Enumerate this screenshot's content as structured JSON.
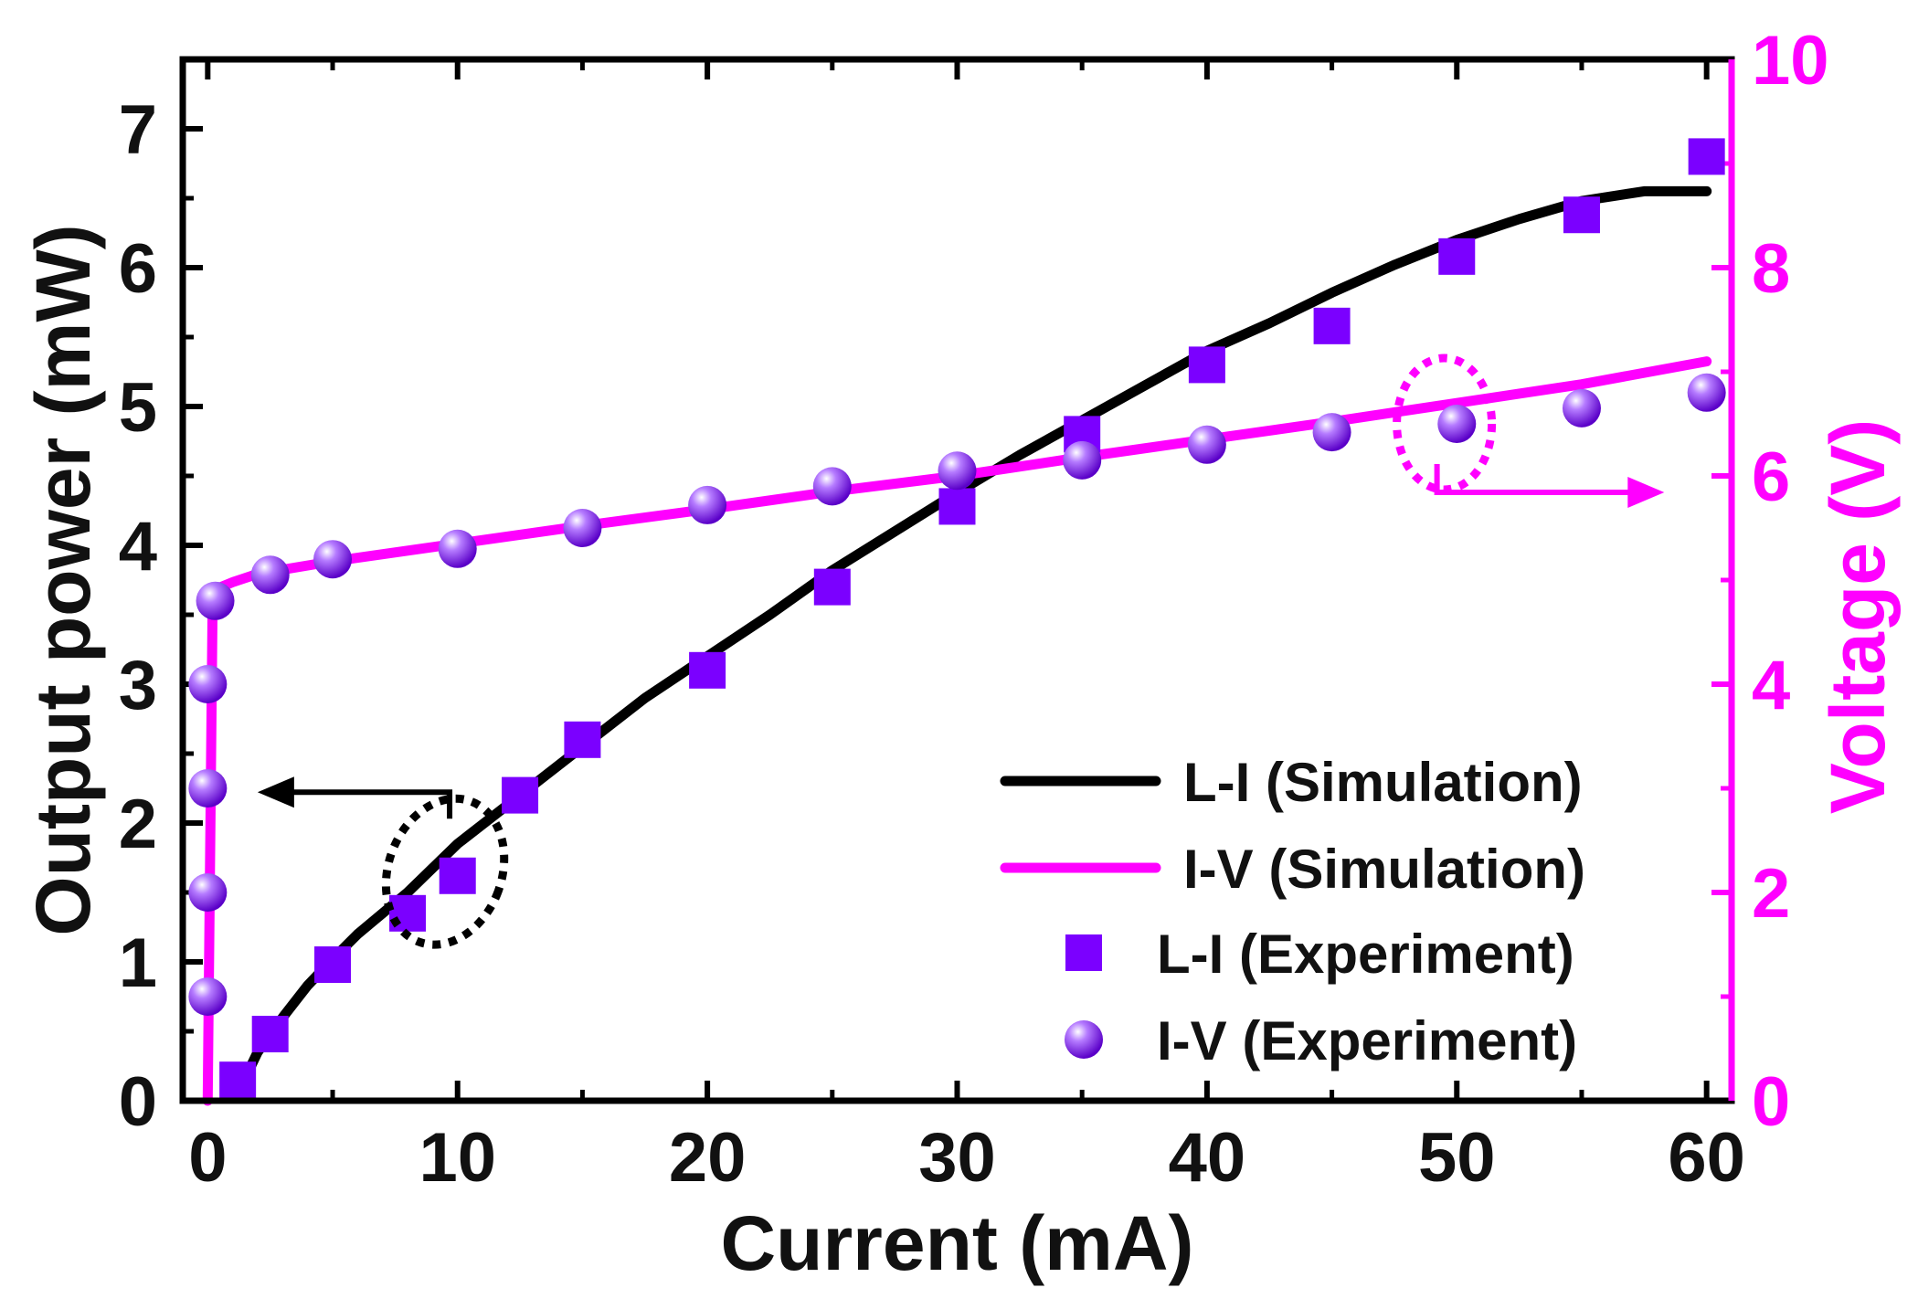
{
  "colors": {
    "axis": "#000000",
    "li_sim": "#000000",
    "iv_sim": "#ff00ff",
    "li_exp": "#7b00ff",
    "iv_exp": "#7b00ff"
  },
  "chart_data": {
    "type": "line",
    "xlabel": "Current (mA)",
    "ylabel": "Output power (mW)",
    "y2label": "Voltage (V)",
    "xlim": [
      -1,
      61
    ],
    "ylim": [
      0,
      7.5
    ],
    "y2lim": [
      0,
      10
    ],
    "x_ticks": [
      "0",
      "10",
      "20",
      "30",
      "40",
      "50",
      "60"
    ],
    "y_ticks": [
      "0",
      "1",
      "2",
      "3",
      "4",
      "5",
      "6",
      "7"
    ],
    "y2_ticks": [
      "0",
      "2",
      "4",
      "6",
      "8",
      "10"
    ],
    "legend_position": "lower-right",
    "series": [
      {
        "name": "L-I (Simulation)",
        "axis": "left",
        "style": "line",
        "x": [
          1.2,
          2,
          3,
          4,
          5,
          6,
          8,
          10,
          12.5,
          15,
          17.5,
          20,
          22.5,
          25,
          27.5,
          30,
          32.5,
          35,
          37.5,
          40,
          42.5,
          45,
          47.5,
          50,
          52.5,
          55,
          57.5,
          60
        ],
        "y": [
          0.05,
          0.35,
          0.6,
          0.83,
          1.02,
          1.2,
          1.5,
          1.85,
          2.2,
          2.55,
          2.9,
          3.2,
          3.5,
          3.82,
          4.1,
          4.38,
          4.65,
          4.9,
          5.15,
          5.4,
          5.6,
          5.82,
          6.02,
          6.2,
          6.35,
          6.48,
          6.55,
          6.55
        ]
      },
      {
        "name": "I-V (Simulation)",
        "axis": "right",
        "style": "line",
        "x": [
          0,
          0.2,
          0.4,
          1,
          2,
          5,
          10,
          15,
          20,
          25,
          30,
          35,
          40,
          45,
          50,
          55,
          60
        ],
        "y": [
          0,
          4.9,
          4.92,
          4.98,
          5.06,
          5.18,
          5.35,
          5.52,
          5.68,
          5.85,
          6.0,
          6.18,
          6.35,
          6.52,
          6.7,
          6.88,
          7.1
        ]
      },
      {
        "name": "L-I (Experiment)",
        "axis": "left",
        "style": "square",
        "x": [
          1.2,
          2.5,
          5,
          8,
          10,
          12.5,
          15,
          20,
          25,
          30,
          35,
          40,
          45,
          50,
          55,
          60
        ],
        "y": [
          0.15,
          0.48,
          0.98,
          1.35,
          1.62,
          2.2,
          2.6,
          3.1,
          3.7,
          4.28,
          4.8,
          5.3,
          5.58,
          6.08,
          6.38,
          6.8
        ]
      },
      {
        "name": "I-V (Experiment)",
        "axis": "right",
        "style": "sphere",
        "x": [
          0,
          0,
          0,
          0,
          0.3,
          2.5,
          5,
          10,
          15,
          20,
          25,
          30,
          35,
          40,
          45,
          50,
          55,
          60
        ],
        "y": [
          1.0,
          2.0,
          3.0,
          4.0,
          4.8,
          5.05,
          5.2,
          5.3,
          5.5,
          5.72,
          5.9,
          6.05,
          6.15,
          6.3,
          6.42,
          6.5,
          6.65,
          6.8
        ]
      }
    ],
    "annotations": [
      {
        "type": "ellipse-arrow",
        "target_axis": "left",
        "direction": "left",
        "at_x": 9.5,
        "at_y": 1.65
      },
      {
        "type": "ellipse-arrow",
        "target_axis": "right",
        "direction": "right",
        "at_x": 49.5,
        "at_y": 6.5
      }
    ]
  }
}
